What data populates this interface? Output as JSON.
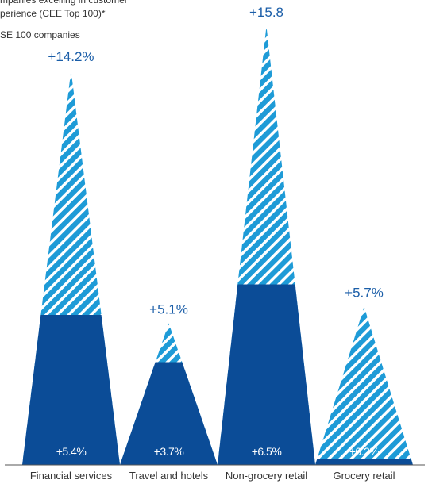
{
  "chart_data": {
    "type": "triangle",
    "categories": [
      "Financial services",
      "Travel and hotels",
      "Non-grocery retail",
      "Grocery retail"
    ],
    "series": [
      {
        "name": "mpanies excelling in customer perience (CEE Top 100)*",
        "color": "#1e9bd7",
        "values": [
          14.2,
          5.1,
          15.8,
          5.7
        ],
        "value_labels": [
          "+14.2%",
          "+5.1%",
          "+15.8",
          "+5.7%"
        ]
      },
      {
        "name": "SE 100 companies",
        "color": "#0b4c97",
        "values": [
          5.4,
          3.7,
          6.5,
          0.2
        ],
        "value_labels": [
          "+5.4%",
          "+3.7%",
          "+6.5%",
          "+0.2%"
        ]
      }
    ]
  }
}
